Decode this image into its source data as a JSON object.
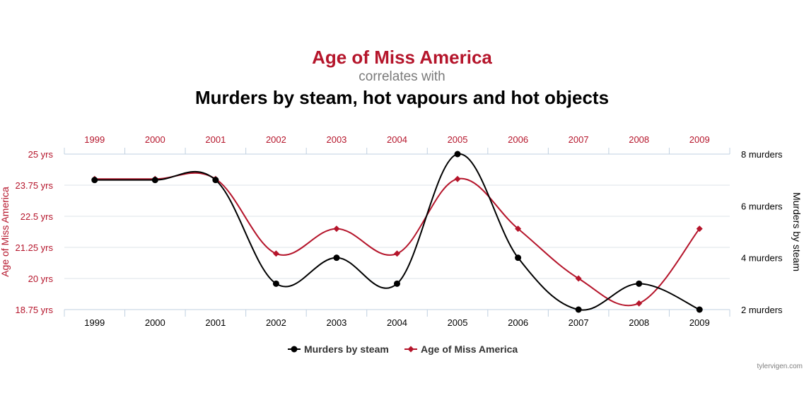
{
  "header": {
    "title_a": "Age of Miss America",
    "connector": "correlates with",
    "title_b": "Murders by steam, hot vapours and hot objects"
  },
  "credit": "tylervigen.com",
  "chart_data": {
    "type": "line",
    "x": [
      "1999",
      "2000",
      "2001",
      "2002",
      "2003",
      "2004",
      "2005",
      "2006",
      "2007",
      "2008",
      "2009"
    ],
    "series": [
      {
        "name": "Murders by steam",
        "axis": "right",
        "color": "#000000",
        "marker": "circle",
        "values": [
          7,
          7,
          7,
          3,
          4,
          3,
          8,
          4,
          2,
          3,
          2
        ]
      },
      {
        "name": "Age of Miss America",
        "axis": "left",
        "color": "#b5152b",
        "marker": "diamond",
        "values": [
          24,
          24,
          24,
          21,
          22,
          21,
          24,
          22,
          20,
          19,
          22
        ]
      }
    ],
    "y_left": {
      "label": "Age of Miss America",
      "ticks": [
        "18.75 yrs",
        "20 yrs",
        "21.25 yrs",
        "22.5 yrs",
        "23.75 yrs",
        "25 yrs"
      ],
      "range": [
        18.75,
        25
      ],
      "color": "#b5152b"
    },
    "y_right": {
      "label": "Murders by steam",
      "ticks": [
        "2 murders",
        "4 murders",
        "6 murders",
        "8 murders"
      ],
      "range": [
        2,
        8
      ],
      "color": "#000000"
    },
    "x_top_color": "#b5152b",
    "grid": true,
    "legend_position": "bottom"
  }
}
